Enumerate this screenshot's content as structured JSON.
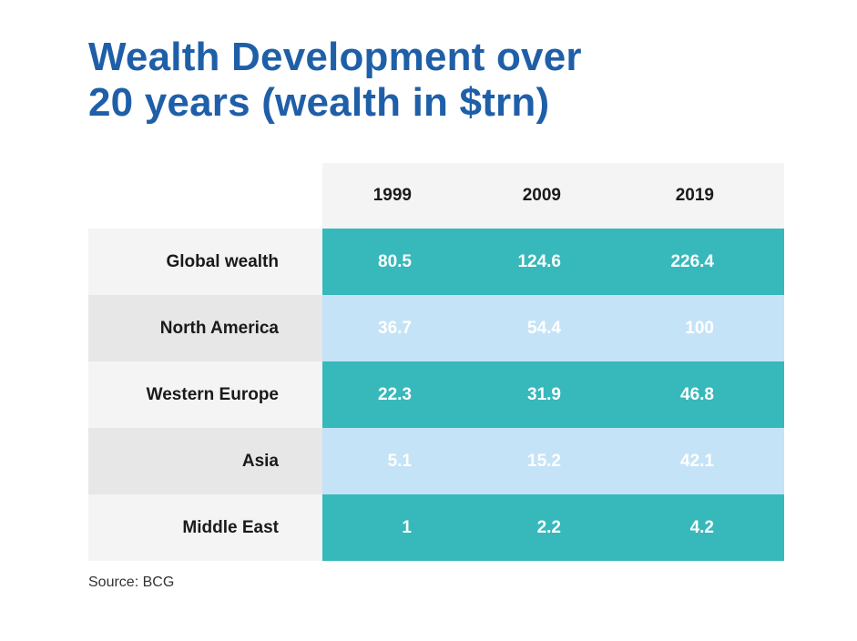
{
  "title_lines": [
    "Wealth Development over",
    "20 years (wealth in $trn)"
  ],
  "source": "Source: BCG",
  "colors": {
    "title": "#1f5fa8",
    "teal_row": "#37b8bb",
    "light_blue_row": "#c5e3f7",
    "label_light": "#f4f4f4",
    "label_dark": "#e7e7e7"
  },
  "chart_data": {
    "type": "table",
    "title": "Wealth Development over 20 years (wealth in $trn)",
    "columns": [
      "1999",
      "2009",
      "2019"
    ],
    "rows": [
      {
        "label": "Global wealth",
        "values": [
          "80.5",
          "124.6",
          "226.4"
        ]
      },
      {
        "label": "North America",
        "values": [
          "36.7",
          "54.4",
          "100"
        ]
      },
      {
        "label": "Western Europe",
        "values": [
          "22.3",
          "31.9",
          "46.8"
        ]
      },
      {
        "label": "Asia",
        "values": [
          "5.1",
          "15.2",
          "42.1"
        ]
      },
      {
        "label": "Middle East",
        "values": [
          "1",
          "2.2",
          "4.2"
        ]
      }
    ]
  }
}
